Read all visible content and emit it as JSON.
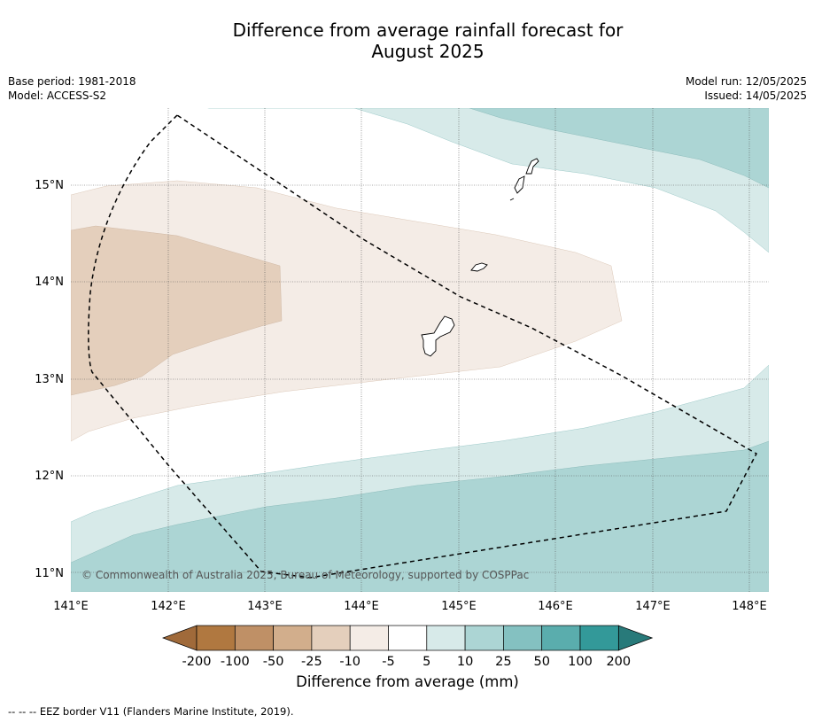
{
  "title_line1": "Difference from average rainfall forecast for",
  "title_line2": "August 2025",
  "base_period": "Base period: 1981-2018",
  "model": "Model: ACCESS-S2",
  "model_run": "Model run: 12/05/2025",
  "issued": "Issued: 14/05/2025",
  "copyright": "© Commonwealth of Australia 2025, Bureau of Meteorology, supported by COSPPac",
  "x_ticks": [
    "141°E",
    "142°E",
    "143°E",
    "144°E",
    "145°E",
    "146°E",
    "147°E",
    "148°E"
  ],
  "y_ticks": [
    "15°N",
    "14°N",
    "13°N",
    "12°N",
    "11°N"
  ],
  "colorbar": {
    "title": "Difference from average (mm)",
    "labels": [
      "-200",
      "-100",
      "-50",
      "-25",
      "-10",
      "-5",
      "5",
      "10",
      "25",
      "50",
      "100",
      "200"
    ],
    "colors": [
      "#b07840",
      "#bf9066",
      "#d2ae8c",
      "#e4cfbc",
      "#f4ece6",
      "#ffffff",
      "#d7eae9",
      "#acd5d4",
      "#84c1c1",
      "#5aadad",
      "#339999"
    ],
    "low_extension_color": "#a06a3a",
    "high_extension_color": "#287a7a"
  },
  "footer": "--  --  -- EEZ border V11 (Flanders Marine Institute, 2019)."
}
